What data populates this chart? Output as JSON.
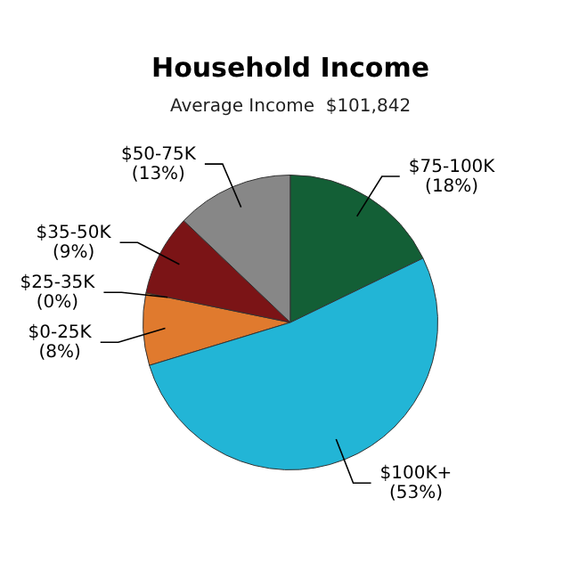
{
  "chart_data": {
    "type": "pie",
    "title": "Household Income",
    "subtitle": "Average Income  $101,842",
    "categories": [
      "$0-25K",
      "$25-35K",
      "$35-50K",
      "$50-75K",
      "$75-100K",
      "$100K+"
    ],
    "values": [
      8,
      0,
      9,
      13,
      18,
      53
    ],
    "colors": [
      "#e07a2e",
      "#3c6fb0",
      "#7b1416",
      "#878787",
      "#135f36",
      "#22b5d6"
    ],
    "value_labels": [
      "(8%)",
      "(0%)",
      "(9%)",
      "(13%)",
      "(18%)",
      "(53%)"
    ]
  }
}
